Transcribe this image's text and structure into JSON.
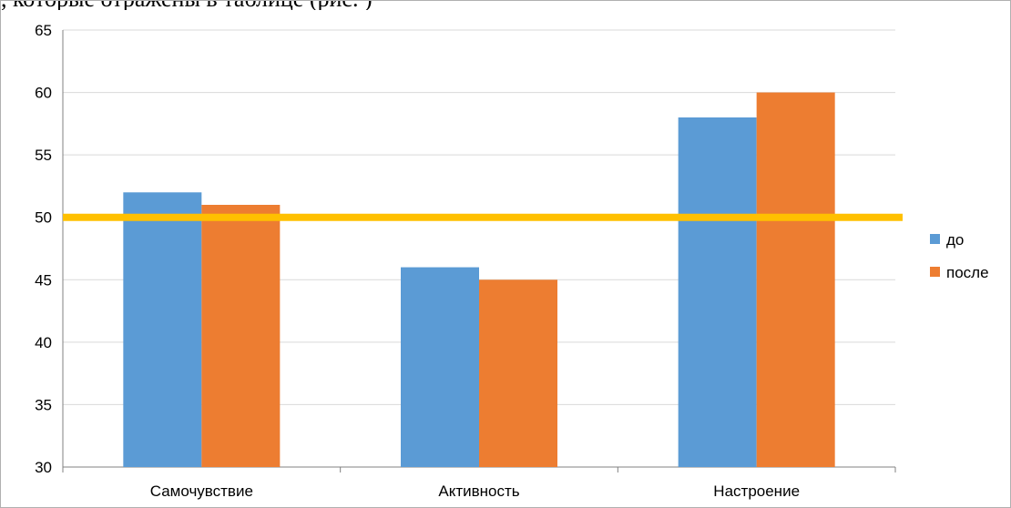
{
  "caption_fragment": ", которые отражены в таблице (рис. )",
  "chart_data": {
    "type": "bar",
    "categories": [
      "Самочувствие",
      "Активность",
      "Настроение"
    ],
    "series": [
      {
        "name": "до",
        "values": [
          52,
          46,
          58
        ],
        "color": "#5b9bd5"
      },
      {
        "name": "после",
        "values": [
          51,
          45,
          60
        ],
        "color": "#ed7d31"
      }
    ],
    "ylim": [
      30,
      65
    ],
    "yticks": [
      30,
      35,
      40,
      45,
      50,
      55,
      60,
      65
    ],
    "grid": true,
    "legend_position": "right",
    "reference_line": {
      "value": 50,
      "color": "#ffc000"
    }
  }
}
